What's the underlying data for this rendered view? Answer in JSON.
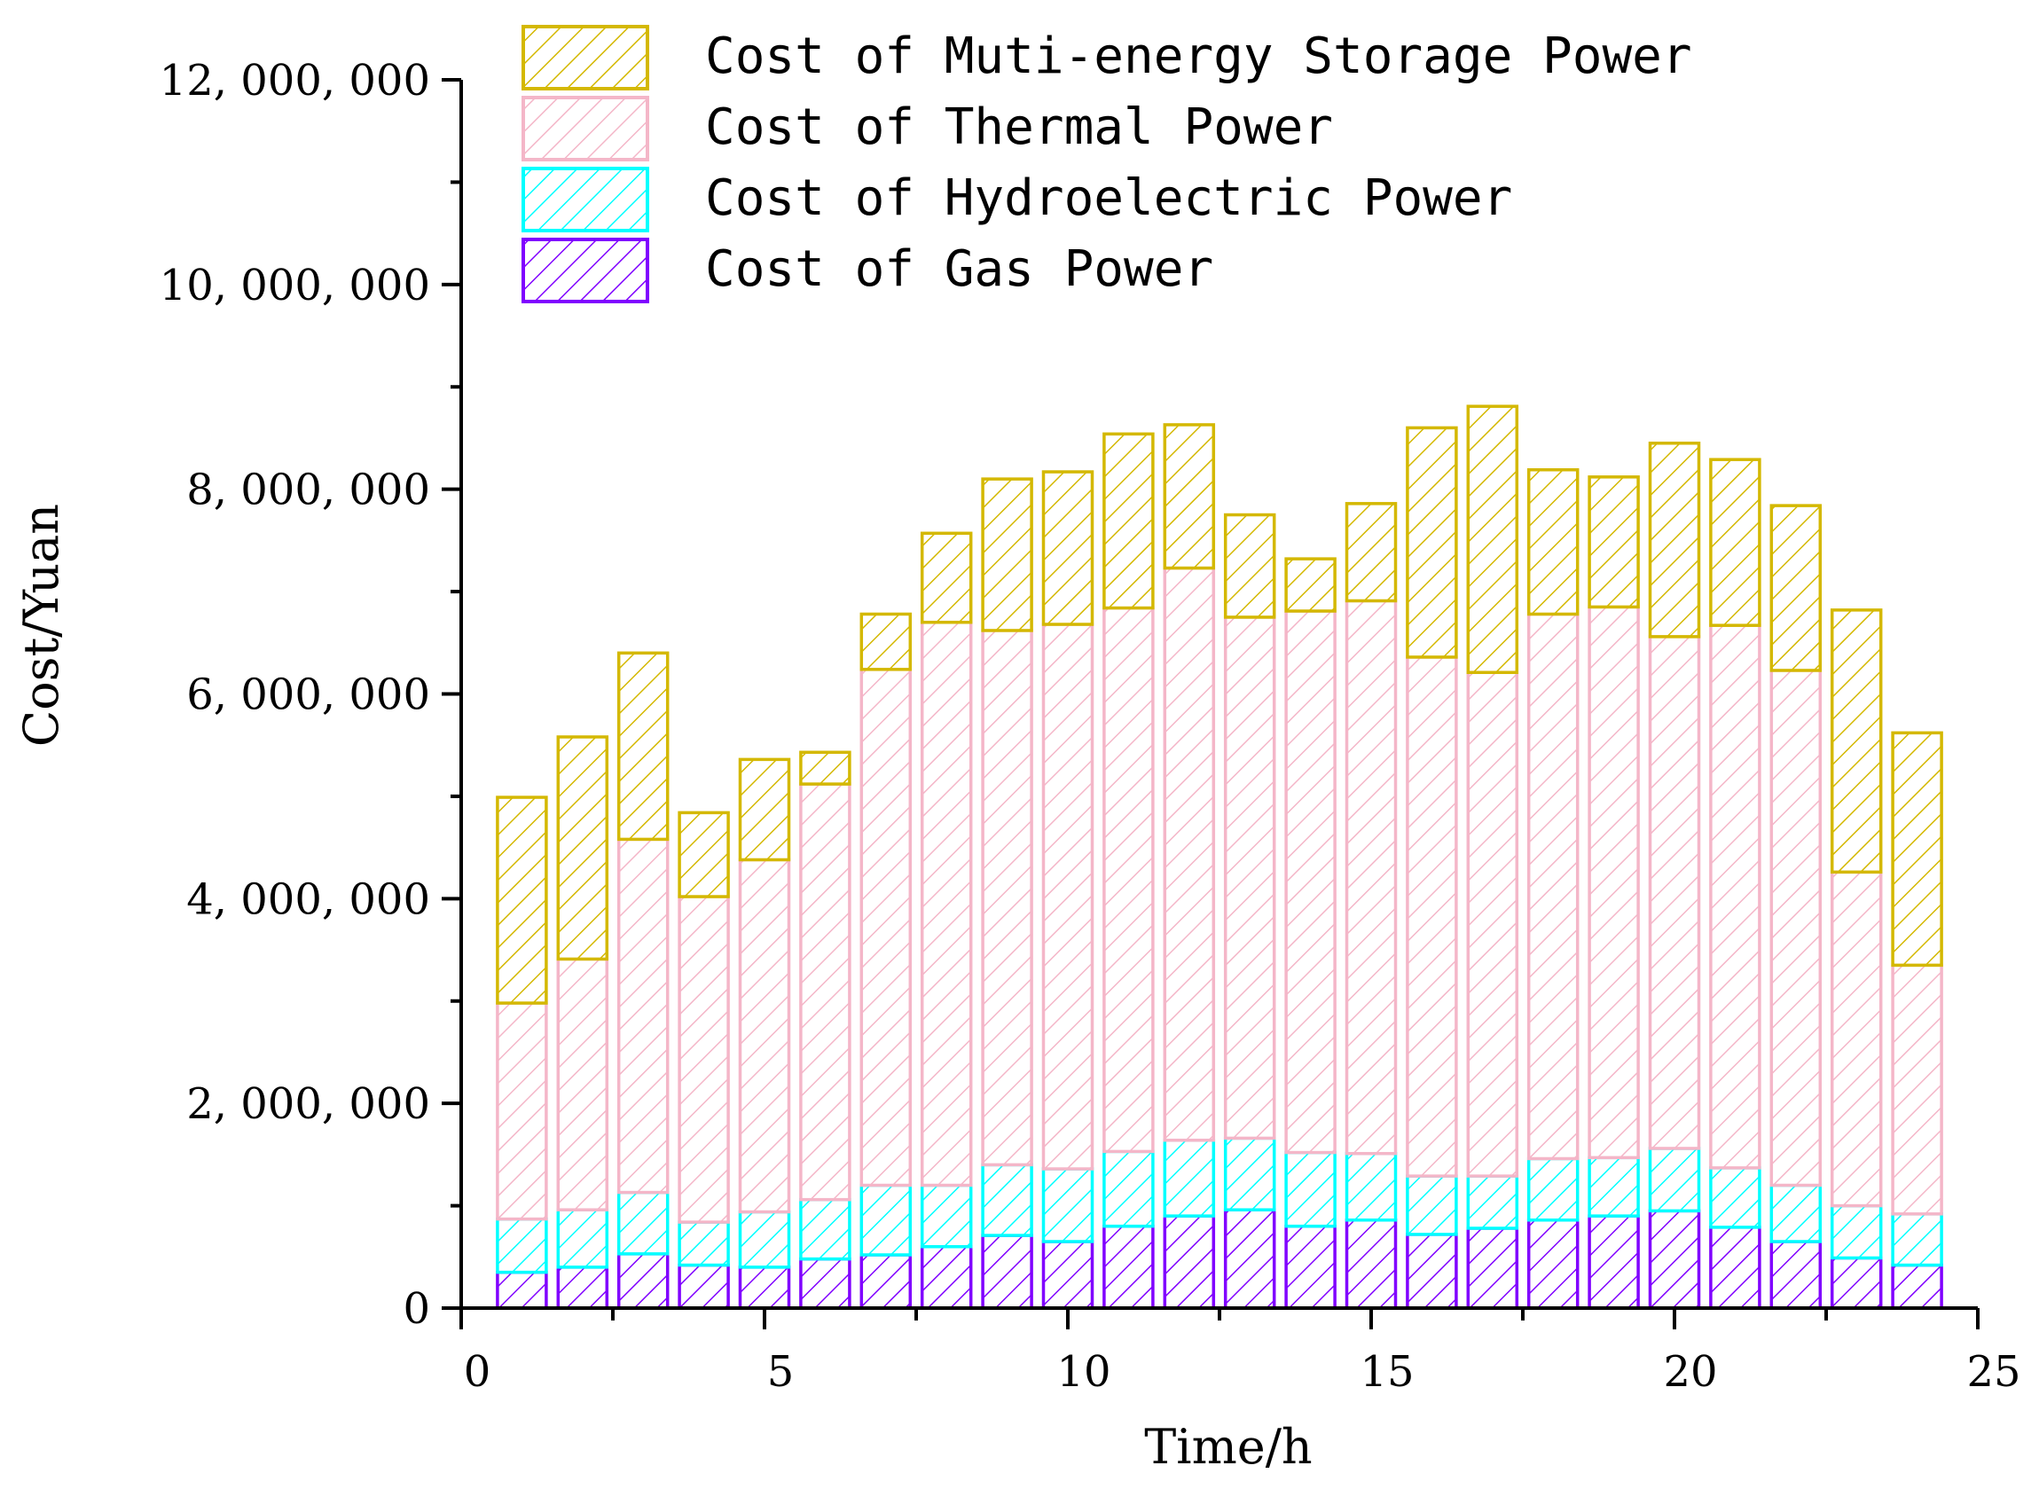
{
  "chart_data": {
    "type": "bar",
    "stacked": true,
    "xlabel": "Time/h",
    "ylabel": "Cost/Yuan",
    "xlim": [
      0,
      25
    ],
    "ylim": [
      0,
      12000000
    ],
    "x_ticks": [
      0,
      5,
      10,
      15,
      20,
      25
    ],
    "x_tick_labels": [
      "0",
      "5",
      "10",
      "15",
      "20",
      "25"
    ],
    "y_ticks": [
      0,
      2000000,
      4000000,
      6000000,
      8000000,
      10000000,
      12000000
    ],
    "y_tick_labels": [
      "0",
      "2, 000, 000",
      "4, 000, 000",
      "6, 000, 000",
      "8, 000, 000",
      "10, 000, 000",
      "12, 000, 000"
    ],
    "legend_position": "top",
    "x": [
      1,
      2,
      3,
      4,
      5,
      6,
      7,
      8,
      9,
      10,
      11,
      12,
      13,
      14,
      15,
      16,
      17,
      18,
      19,
      20,
      21,
      22,
      23,
      24
    ],
    "series": [
      {
        "name": "Cost of Gas Power",
        "color": "#8000ff",
        "values": [
          350000,
          400000,
          530000,
          420000,
          400000,
          480000,
          520000,
          600000,
          710000,
          650000,
          800000,
          900000,
          960000,
          800000,
          860000,
          720000,
          780000,
          860000,
          900000,
          950000,
          790000,
          650000,
          490000,
          420000
        ]
      },
      {
        "name": "Cost of Hydroelectric Power",
        "color": "#00ffff",
        "values": [
          520000,
          560000,
          600000,
          420000,
          540000,
          580000,
          680000,
          600000,
          690000,
          710000,
          730000,
          740000,
          700000,
          720000,
          650000,
          570000,
          510000,
          600000,
          570000,
          610000,
          580000,
          550000,
          510000,
          500000
        ]
      },
      {
        "name": "Cost of Thermal Power",
        "color": "#f4b6c8",
        "values": [
          2110000,
          2450000,
          3450000,
          3180000,
          3440000,
          4060000,
          5040000,
          5500000,
          5220000,
          5320000,
          5310000,
          5590000,
          5090000,
          5290000,
          5400000,
          5070000,
          4920000,
          5320000,
          5380000,
          5000000,
          5300000,
          5030000,
          3260000,
          2430000
        ]
      },
      {
        "name": "Cost of Muti-energy Storage Power",
        "color": "#d4b800",
        "values": [
          2010000,
          2170000,
          1820000,
          820000,
          980000,
          310000,
          540000,
          870000,
          1480000,
          1490000,
          1700000,
          1400000,
          1000000,
          510000,
          950000,
          2240000,
          2600000,
          1410000,
          1270000,
          1890000,
          1620000,
          1610000,
          2560000,
          2270000
        ]
      }
    ]
  }
}
